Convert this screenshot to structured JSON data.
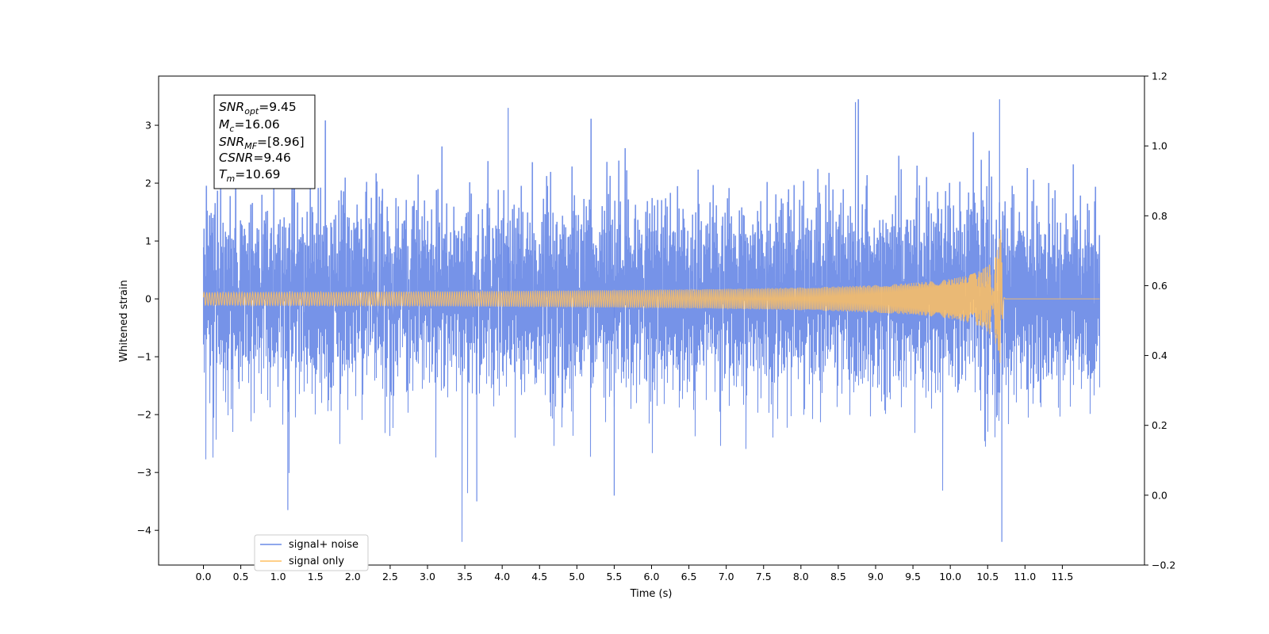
{
  "chart_data": {
    "type": "line",
    "title": "",
    "xlabel": "Time (s)",
    "ylabel": "Whitened strain",
    "xlim": [
      -0.6,
      12.6
    ],
    "ylim": [
      -4.6,
      3.85
    ],
    "y2lim": [
      -0.2,
      1.2
    ],
    "x_ticks": [
      0.0,
      0.5,
      1.0,
      1.5,
      2.0,
      2.5,
      3.0,
      3.5,
      4.0,
      4.5,
      5.0,
      5.5,
      6.0,
      6.5,
      7.0,
      7.5,
      8.0,
      8.5,
      9.0,
      9.5,
      10.0,
      10.5,
      11.0,
      11.5
    ],
    "x_tick_labels": [
      "0.0",
      "0.5",
      "1.0",
      "1.5",
      "2.0",
      "2.5",
      "3.0",
      "3.5",
      "4.0",
      "4.5",
      "5.0",
      "5.5",
      "6.0",
      "6.5",
      "7.0",
      "7.5",
      "8.0",
      "8.5",
      "9.0",
      "9.5",
      "10.0",
      "10.5",
      "11.0",
      "11.5"
    ],
    "y_ticks": [
      -4,
      -3,
      -2,
      -1,
      0,
      1,
      2,
      3
    ],
    "y_tick_labels": [
      "−4",
      "−3",
      "−2",
      "−1",
      "0",
      "1",
      "2",
      "3"
    ],
    "y2_ticks": [
      -0.2,
      0.0,
      0.2,
      0.4,
      0.6,
      0.8,
      1.0,
      1.2
    ],
    "y2_tick_labels": [
      "−0.2",
      "0.0",
      "0.2",
      "0.4",
      "0.6",
      "0.8",
      "1.0",
      "1.2"
    ],
    "series": [
      {
        "name": "signal+ noise",
        "color": "#6a8ae6",
        "kind": "whitened noise with injected chirp",
        "x_start": 0.0,
        "x_end": 12.0,
        "amplitude_range": [
          -4.2,
          3.45
        ]
      },
      {
        "name": "signal only",
        "color": "#ffbf60",
        "kind": "inspiral chirp",
        "x_start": 0.0,
        "x_end": 12.0,
        "merger_time": 10.69,
        "peak_amplitude": 1.55
      }
    ],
    "annotations": {
      "lines": [
        {
          "main": "SNR",
          "sub": "opt",
          "value": "=9.45"
        },
        {
          "main": "M",
          "sub": "c",
          "value": "=16.06"
        },
        {
          "main": "SNR",
          "sub": "MF",
          "value": "=[8.96]"
        },
        {
          "main": "CSNR",
          "sub": "",
          "value": "=9.46"
        },
        {
          "main": "T",
          "sub": "m",
          "value": "=10.69"
        }
      ]
    },
    "legend": {
      "placement": "lower-left",
      "entries": [
        "signal+ noise",
        "signal only"
      ]
    },
    "grid": false
  }
}
